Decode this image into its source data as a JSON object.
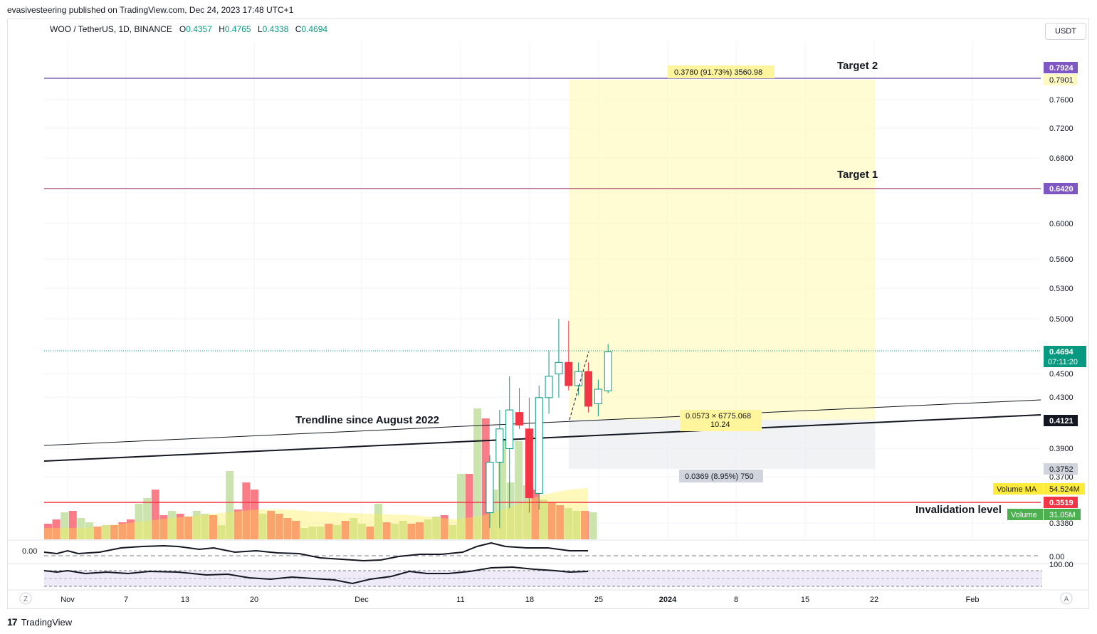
{
  "header": {
    "published": "evasivesteering published on TradingView.com, Dec 24, 2023 17:48 UTC+1",
    "symbol": "WOO / TetherUS, 1D, BINANCE",
    "o_label": "O",
    "o_value": "0.4357",
    "h_label": "H",
    "h_value": "0.4765",
    "l_label": "L",
    "l_value": "0.4338",
    "c_label": "C",
    "c_value": "0.4694",
    "currency": "USDT"
  },
  "footer": {
    "brand": "TradingView"
  },
  "colors": {
    "up": "#089981",
    "down": "#f23645",
    "volume_up": "#a5d6a7",
    "volume_down": "#f7525f",
    "target_line": "#7e57c2",
    "invalidation_line": "#f23645",
    "target_zone": "#fff9c4",
    "stop_zone": "#eceff1",
    "volume_ma": "#ffeb3b"
  },
  "chart_data": {
    "type": "candlestick",
    "y_axis": {
      "ticks": [
        "0.7600",
        "0.7200",
        "0.6800",
        "0.6000",
        "0.5600",
        "0.5300",
        "0.5000",
        "0.4500",
        "0.4300",
        "0.3900",
        "0.3700",
        "0.3380"
      ],
      "log_scale": true,
      "range": [
        0.33,
        0.82
      ]
    },
    "x_axis": {
      "ticks": [
        "Nov",
        "7",
        "13",
        "20",
        "Dec",
        "11",
        "18",
        "25",
        "2024",
        "8",
        "15",
        "22",
        "Feb"
      ],
      "range": [
        "2023-10-29",
        "2024-02-12"
      ]
    },
    "candles_recent": [
      {
        "date": "2023-12-12",
        "o": 0.345,
        "h": 0.385,
        "l": 0.335,
        "c": 0.38
      },
      {
        "date": "2023-12-13",
        "o": 0.38,
        "h": 0.42,
        "l": 0.335,
        "c": 0.405
      },
      {
        "date": "2023-12-14",
        "o": 0.39,
        "h": 0.448,
        "l": 0.348,
        "c": 0.42
      },
      {
        "date": "2023-12-15",
        "o": 0.418,
        "h": 0.438,
        "l": 0.405,
        "c": 0.408
      },
      {
        "date": "2023-12-16",
        "o": 0.405,
        "h": 0.43,
        "l": 0.345,
        "c": 0.355
      },
      {
        "date": "2023-12-17",
        "o": 0.358,
        "h": 0.44,
        "l": 0.347,
        "c": 0.43
      },
      {
        "date": "2023-12-18",
        "o": 0.43,
        "h": 0.47,
        "l": 0.417,
        "c": 0.448
      },
      {
        "date": "2023-12-19",
        "o": 0.45,
        "h": 0.5,
        "l": 0.43,
        "c": 0.46
      },
      {
        "date": "2023-12-20",
        "o": 0.46,
        "h": 0.498,
        "l": 0.436,
        "c": 0.44
      },
      {
        "date": "2023-12-21",
        "o": 0.44,
        "h": 0.46,
        "l": 0.432,
        "c": 0.452
      },
      {
        "date": "2023-12-22",
        "o": 0.452,
        "h": 0.46,
        "l": 0.418,
        "c": 0.423
      },
      {
        "date": "2023-12-23",
        "o": 0.425,
        "h": 0.445,
        "l": 0.415,
        "c": 0.437
      },
      {
        "date": "2023-12-24",
        "o": 0.4357,
        "h": 0.4765,
        "l": 0.4338,
        "c": 0.4694
      }
    ],
    "horizontal_lines": [
      {
        "label": "Target 2",
        "value": 0.7924
      },
      {
        "label": "Target 1",
        "value": 0.642
      },
      {
        "label": "Invalidation level",
        "value": 0.3519
      }
    ],
    "annotations": [
      {
        "text": "Trendline since August 2022"
      },
      {
        "text": "0.3780 (91.73%) 3560.98"
      },
      {
        "text": "0.0573 × 6775.068"
      },
      {
        "text": "10.24"
      },
      {
        "text": "0.0369 (8.95%) 750"
      }
    ],
    "price_labels": [
      {
        "text": "0.7924",
        "value": 0.7924,
        "color": "#7e57c2"
      },
      {
        "text": "0.7901",
        "value": 0.7901,
        "color": "#fff9c4"
      },
      {
        "text": "0.6420",
        "value": 0.642,
        "color": "#7e57c2"
      },
      {
        "text": "0.4694",
        "value": 0.4694,
        "color": "#089981"
      },
      {
        "text": "07:11:20",
        "value": 0.4694,
        "color": "#089981"
      },
      {
        "text": "0.4121",
        "value": 0.4121,
        "color": "#131722"
      },
      {
        "text": "0.3752",
        "value": 0.3752,
        "color": "#d1d4dc"
      },
      {
        "text": "0.3519",
        "value": 0.3519,
        "color": "#f23645"
      }
    ],
    "volume": {
      "ma_label": "Volume MA",
      "ma_value": "54.524M",
      "label": "Volume",
      "value": "31.05M"
    },
    "oscillator_1": {
      "left_value": "0.00",
      "right_value": "0.00"
    },
    "oscillator_2": {
      "right_value": "100.00"
    },
    "bottom_buttons": {
      "left": "Z",
      "right": "A"
    }
  }
}
